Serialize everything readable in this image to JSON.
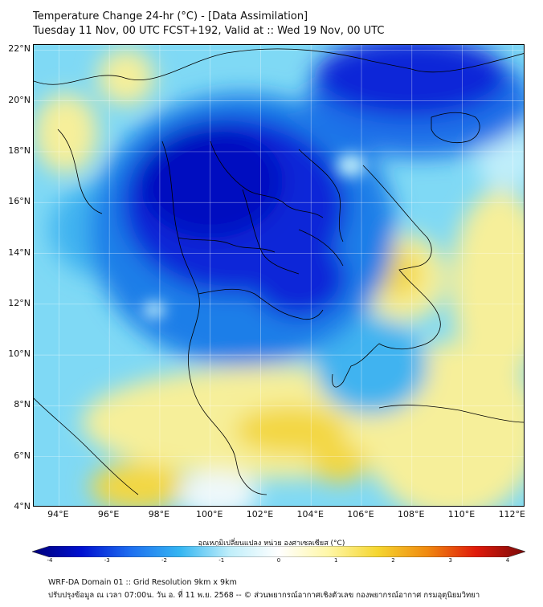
{
  "header": {
    "title": "Temperature Change 24-hr (°C) - [Data Assimilation]",
    "subtitle": "Tuesday 11 Nov, 00 UTC FCST+192, Valid at :: Wed 19 Nov, 00 UTC"
  },
  "map": {
    "lon_range": [
      93,
      112.5
    ],
    "lat_range": [
      4,
      22.2
    ],
    "lon_ticks": [
      "94°E",
      "96°E",
      "98°E",
      "100°E",
      "102°E",
      "104°E",
      "106°E",
      "108°E",
      "110°E",
      "112°E"
    ],
    "lon_values": [
      94,
      96,
      98,
      100,
      102,
      104,
      106,
      108,
      110,
      112
    ],
    "lat_ticks": [
      "22°N",
      "20°N",
      "18°N",
      "16°N",
      "14°N",
      "12°N",
      "10°N",
      "8°N",
      "6°N",
      "4°N"
    ],
    "lat_values": [
      22,
      20,
      18,
      16,
      14,
      12,
      10,
      8,
      6,
      4
    ],
    "grid": true,
    "colors": {
      "strong_cooling": "#0011c8",
      "moderate_cooling": "#1a7ee8",
      "slight_cooling": "#5cd0f4",
      "near_zero": "#eef8fb",
      "slight_warming": "#f6ef9a",
      "warming": "#f3d742",
      "coastline": "#000000"
    }
  },
  "colorbar": {
    "label": "อุณหภูมิเปลี่ยนแปลง หน่วย องศาเซลเซียส (°C)",
    "ticks": [
      "-4",
      "-3",
      "-2",
      "-1",
      "0",
      "1",
      "2",
      "3",
      "4"
    ],
    "range": [
      -4,
      4
    ],
    "colors": [
      "#00007a",
      "#0010d0",
      "#1e6ff0",
      "#35b6f2",
      "#bfeefa",
      "#ffffff",
      "#fff7a8",
      "#f5d630",
      "#f08a10",
      "#e01a0a",
      "#7a0a0a"
    ]
  },
  "footer": {
    "line1": "WRF-DA Domain 01 :: Grid Resolution 9km x 9km",
    "line2": "ปรับปรุงข้อมูล ณ เวลา 07:00น. วัน อ. ที่ 11 พ.ย. 2568 -- © ส่วนพยากรณ์อากาศเชิงตัวเลข กองพยากรณ์อากาศ กรมอุตุนิยมวิทยา"
  }
}
